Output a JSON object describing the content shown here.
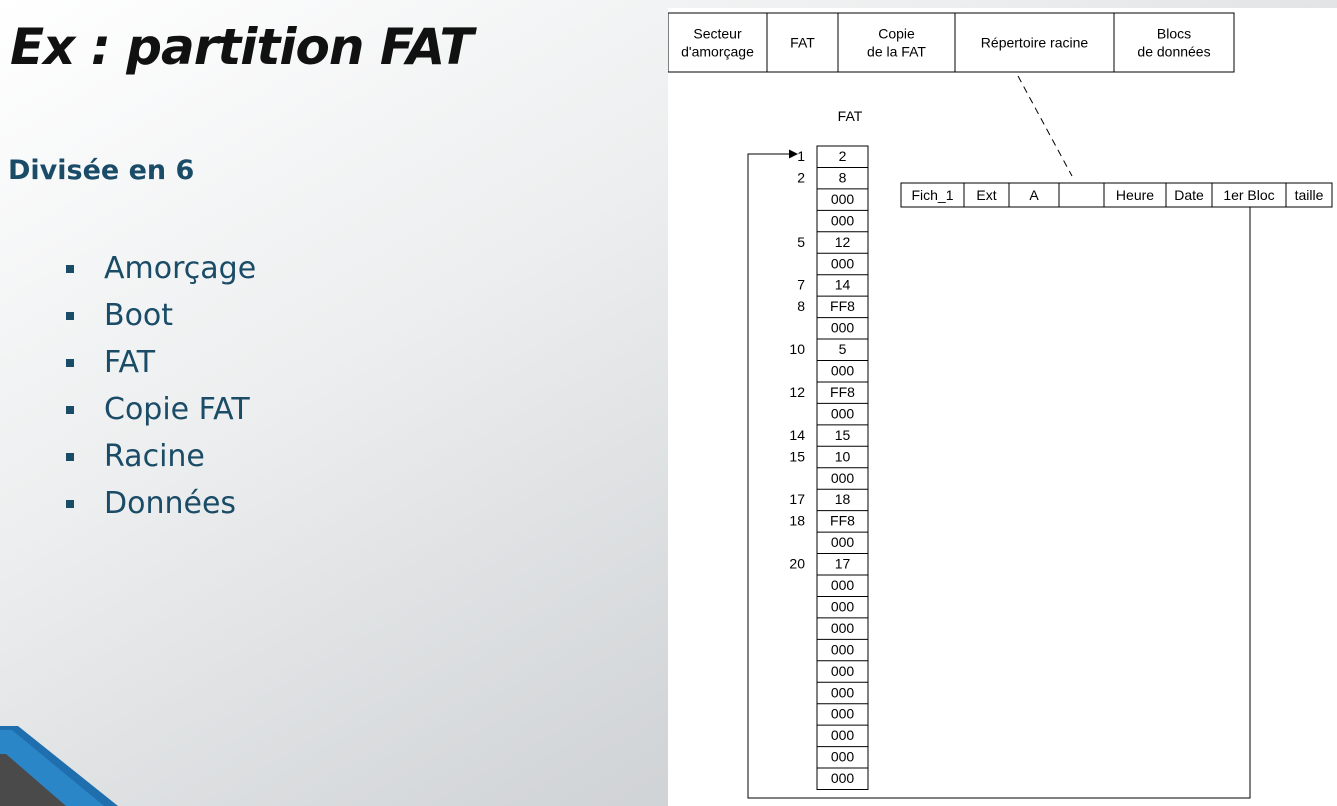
{
  "slide": {
    "title": "Ex : partition FAT",
    "subtitle": "Divisée en 6",
    "bullets": [
      "Amorçage",
      "Boot",
      "FAT",
      "Copie FAT",
      "Racine",
      "Données"
    ]
  },
  "diagram": {
    "partition_header": [
      [
        "Secteur",
        "d'amorçage"
      ],
      [
        "FAT"
      ],
      [
        "Copie",
        "de la FAT"
      ],
      [
        "Répertoire racine"
      ],
      [
        "Blocs",
        "de données"
      ]
    ],
    "fat_label": "FAT",
    "fat_entries": [
      {
        "index": "1",
        "value": "2"
      },
      {
        "index": "2",
        "value": "8"
      },
      {
        "index": "",
        "value": "000"
      },
      {
        "index": "",
        "value": "000"
      },
      {
        "index": "5",
        "value": "12"
      },
      {
        "index": "",
        "value": "000"
      },
      {
        "index": "7",
        "value": "14"
      },
      {
        "index": "8",
        "value": "FF8"
      },
      {
        "index": "",
        "value": "000"
      },
      {
        "index": "10",
        "value": "5"
      },
      {
        "index": "",
        "value": "000"
      },
      {
        "index": "12",
        "value": "FF8"
      },
      {
        "index": "",
        "value": "000"
      },
      {
        "index": "14",
        "value": "15"
      },
      {
        "index": "15",
        "value": "10"
      },
      {
        "index": "",
        "value": "000"
      },
      {
        "index": "17",
        "value": "18"
      },
      {
        "index": "18",
        "value": "FF8"
      },
      {
        "index": "",
        "value": "000"
      },
      {
        "index": "20",
        "value": "17"
      },
      {
        "index": "",
        "value": "000"
      },
      {
        "index": "",
        "value": "000"
      },
      {
        "index": "",
        "value": "000"
      },
      {
        "index": "",
        "value": "000"
      },
      {
        "index": "",
        "value": "000"
      },
      {
        "index": "",
        "value": "000"
      },
      {
        "index": "",
        "value": "000"
      },
      {
        "index": "",
        "value": "000"
      },
      {
        "index": "",
        "value": "000"
      },
      {
        "index": "",
        "value": "000"
      }
    ],
    "directory_entry": [
      "Fich_1",
      "Ext",
      "A",
      "",
      "Heure",
      "Date",
      "1er Bloc",
      "taille"
    ]
  }
}
